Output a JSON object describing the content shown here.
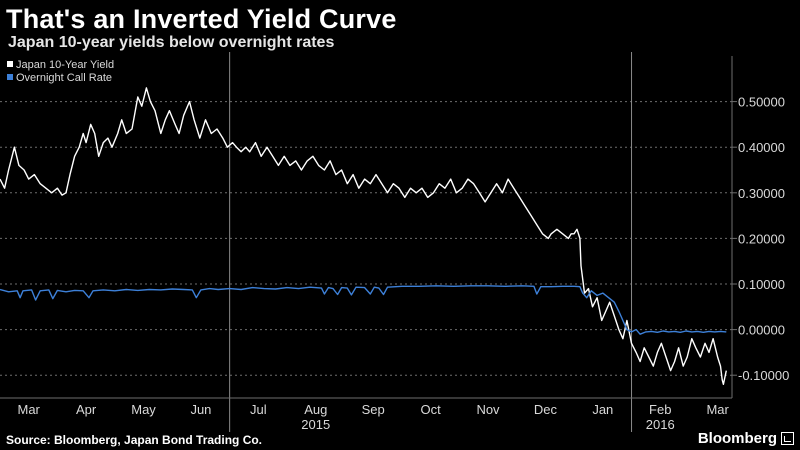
{
  "title": "That's an Inverted Yield Curve",
  "subtitle": "Japan 10-year yields below overnight rates",
  "source": "Source: Bloomberg, Japan Bond Trading Co.",
  "brand": "Bloomberg",
  "colors": {
    "background": "#000000",
    "yield_line": "#ffffff",
    "call_rate_line": "#3d80d8",
    "grid": "#6e6e6e",
    "text": "#d9d9d9"
  },
  "chart_data": {
    "type": "line",
    "title": "That's an Inverted Yield Curve",
    "subtitle": "Japan 10-year yields below overnight rates",
    "xlabel": "",
    "ylabel": "",
    "x_range": [
      2.0,
      14.75
    ],
    "ylim": [
      -0.15,
      0.6
    ],
    "y_ticks": [
      -0.1,
      0.0,
      0.1,
      0.2,
      0.3,
      0.4,
      0.5
    ],
    "y_tick_labels": [
      "-0.10000",
      "0.00000",
      "0.10000",
      "0.20000",
      "0.30000",
      "0.40000",
      "0.50000"
    ],
    "x_ticks": [
      {
        "x": 2.5,
        "label": "Mar"
      },
      {
        "x": 3.5,
        "label": "Apr"
      },
      {
        "x": 4.5,
        "label": "May"
      },
      {
        "x": 5.5,
        "label": "Jun"
      },
      {
        "x": 6.5,
        "label": "Jul"
      },
      {
        "x": 7.5,
        "label": "Aug"
      },
      {
        "x": 8.5,
        "label": "Sep"
      },
      {
        "x": 9.5,
        "label": "Oct"
      },
      {
        "x": 10.5,
        "label": "Nov"
      },
      {
        "x": 11.5,
        "label": "Dec"
      },
      {
        "x": 12.5,
        "label": "Jan"
      },
      {
        "x": 13.5,
        "label": "Feb"
      },
      {
        "x": 14.5,
        "label": "Mar"
      }
    ],
    "year_labels": [
      {
        "x": 7.5,
        "label": "2015"
      },
      {
        "x": 13.5,
        "label": "2016"
      }
    ],
    "year_dividers": [
      6.0,
      13.0
    ],
    "legend_position": "top-left",
    "series": [
      {
        "name": "Japan 10-Year Yield",
        "color": "#ffffff",
        "points": [
          [
            2.0,
            0.33
          ],
          [
            2.08,
            0.31
          ],
          [
            2.15,
            0.35
          ],
          [
            2.25,
            0.4
          ],
          [
            2.33,
            0.36
          ],
          [
            2.42,
            0.35
          ],
          [
            2.5,
            0.33
          ],
          [
            2.6,
            0.34
          ],
          [
            2.7,
            0.32
          ],
          [
            2.8,
            0.31
          ],
          [
            2.9,
            0.3
          ],
          [
            3.0,
            0.31
          ],
          [
            3.08,
            0.295
          ],
          [
            3.15,
            0.3
          ],
          [
            3.22,
            0.34
          ],
          [
            3.3,
            0.38
          ],
          [
            3.38,
            0.4
          ],
          [
            3.45,
            0.43
          ],
          [
            3.5,
            0.41
          ],
          [
            3.58,
            0.45
          ],
          [
            3.65,
            0.43
          ],
          [
            3.72,
            0.38
          ],
          [
            3.8,
            0.41
          ],
          [
            3.88,
            0.42
          ],
          [
            3.95,
            0.4
          ],
          [
            4.05,
            0.43
          ],
          [
            4.12,
            0.46
          ],
          [
            4.2,
            0.43
          ],
          [
            4.3,
            0.44
          ],
          [
            4.4,
            0.51
          ],
          [
            4.47,
            0.49
          ],
          [
            4.55,
            0.53
          ],
          [
            4.62,
            0.5
          ],
          [
            4.7,
            0.48
          ],
          [
            4.8,
            0.43
          ],
          [
            4.88,
            0.46
          ],
          [
            4.95,
            0.48
          ],
          [
            5.05,
            0.45
          ],
          [
            5.12,
            0.43
          ],
          [
            5.2,
            0.47
          ],
          [
            5.3,
            0.5
          ],
          [
            5.38,
            0.46
          ],
          [
            5.48,
            0.42
          ],
          [
            5.58,
            0.46
          ],
          [
            5.68,
            0.43
          ],
          [
            5.78,
            0.44
          ],
          [
            5.88,
            0.42
          ],
          [
            5.96,
            0.4
          ],
          [
            6.05,
            0.41
          ],
          [
            6.12,
            0.4
          ],
          [
            6.2,
            0.39
          ],
          [
            6.28,
            0.4
          ],
          [
            6.35,
            0.39
          ],
          [
            6.45,
            0.41
          ],
          [
            6.55,
            0.38
          ],
          [
            6.65,
            0.4
          ],
          [
            6.75,
            0.38
          ],
          [
            6.85,
            0.36
          ],
          [
            6.95,
            0.38
          ],
          [
            7.05,
            0.36
          ],
          [
            7.15,
            0.37
          ],
          [
            7.25,
            0.35
          ],
          [
            7.35,
            0.37
          ],
          [
            7.45,
            0.38
          ],
          [
            7.55,
            0.36
          ],
          [
            7.65,
            0.35
          ],
          [
            7.75,
            0.37
          ],
          [
            7.85,
            0.34
          ],
          [
            7.95,
            0.35
          ],
          [
            8.05,
            0.32
          ],
          [
            8.15,
            0.34
          ],
          [
            8.25,
            0.31
          ],
          [
            8.35,
            0.33
          ],
          [
            8.45,
            0.32
          ],
          [
            8.55,
            0.34
          ],
          [
            8.65,
            0.32
          ],
          [
            8.75,
            0.3
          ],
          [
            8.85,
            0.32
          ],
          [
            8.95,
            0.31
          ],
          [
            9.05,
            0.29
          ],
          [
            9.15,
            0.31
          ],
          [
            9.25,
            0.3
          ],
          [
            9.35,
            0.31
          ],
          [
            9.45,
            0.29
          ],
          [
            9.55,
            0.3
          ],
          [
            9.65,
            0.32
          ],
          [
            9.75,
            0.31
          ],
          [
            9.85,
            0.33
          ],
          [
            9.95,
            0.3
          ],
          [
            10.05,
            0.31
          ],
          [
            10.15,
            0.33
          ],
          [
            10.25,
            0.32
          ],
          [
            10.35,
            0.3
          ],
          [
            10.45,
            0.28
          ],
          [
            10.55,
            0.3
          ],
          [
            10.65,
            0.32
          ],
          [
            10.75,
            0.3
          ],
          [
            10.85,
            0.33
          ],
          [
            10.95,
            0.31
          ],
          [
            11.05,
            0.29
          ],
          [
            11.15,
            0.27
          ],
          [
            11.25,
            0.25
          ],
          [
            11.35,
            0.23
          ],
          [
            11.45,
            0.21
          ],
          [
            11.55,
            0.2
          ],
          [
            11.6,
            0.21
          ],
          [
            11.7,
            0.22
          ],
          [
            11.8,
            0.21
          ],
          [
            11.9,
            0.2
          ],
          [
            11.95,
            0.21
          ],
          [
            12.0,
            0.21
          ],
          [
            12.05,
            0.22
          ],
          [
            12.1,
            0.2
          ],
          [
            12.12,
            0.14
          ],
          [
            12.18,
            0.08
          ],
          [
            12.25,
            0.09
          ],
          [
            12.32,
            0.05
          ],
          [
            12.4,
            0.07
          ],
          [
            12.48,
            0.02
          ],
          [
            12.55,
            0.04
          ],
          [
            12.62,
            0.06
          ],
          [
            12.7,
            0.03
          ],
          [
            12.78,
            0.0
          ],
          [
            12.85,
            -0.02
          ],
          [
            12.92,
            0.02
          ],
          [
            13.0,
            -0.03
          ],
          [
            13.08,
            -0.05
          ],
          [
            13.15,
            -0.07
          ],
          [
            13.22,
            -0.04
          ],
          [
            13.3,
            -0.06
          ],
          [
            13.38,
            -0.08
          ],
          [
            13.45,
            -0.05
          ],
          [
            13.52,
            -0.03
          ],
          [
            13.6,
            -0.06
          ],
          [
            13.68,
            -0.09
          ],
          [
            13.75,
            -0.07
          ],
          [
            13.82,
            -0.04
          ],
          [
            13.9,
            -0.08
          ],
          [
            13.97,
            -0.06
          ],
          [
            14.05,
            -0.02
          ],
          [
            14.12,
            -0.04
          ],
          [
            14.2,
            -0.06
          ],
          [
            14.28,
            -0.03
          ],
          [
            14.35,
            -0.05
          ],
          [
            14.42,
            -0.02
          ],
          [
            14.5,
            -0.06
          ],
          [
            14.55,
            -0.08
          ],
          [
            14.58,
            -0.11
          ],
          [
            14.6,
            -0.12
          ],
          [
            14.65,
            -0.09
          ]
        ]
      },
      {
        "name": "Overnight Call Rate",
        "color": "#3d80d8",
        "points": [
          [
            2.0,
            0.088
          ],
          [
            2.15,
            0.083
          ],
          [
            2.3,
            0.085
          ],
          [
            2.35,
            0.07
          ],
          [
            2.4,
            0.085
          ],
          [
            2.55,
            0.087
          ],
          [
            2.62,
            0.065
          ],
          [
            2.7,
            0.085
          ],
          [
            2.85,
            0.087
          ],
          [
            2.92,
            0.068
          ],
          [
            3.0,
            0.086
          ],
          [
            3.15,
            0.083
          ],
          [
            3.3,
            0.086
          ],
          [
            3.45,
            0.085
          ],
          [
            3.55,
            0.07
          ],
          [
            3.62,
            0.085
          ],
          [
            3.8,
            0.087
          ],
          [
            4.0,
            0.085
          ],
          [
            4.2,
            0.088
          ],
          [
            4.4,
            0.086
          ],
          [
            4.6,
            0.088
          ],
          [
            4.8,
            0.087
          ],
          [
            5.0,
            0.089
          ],
          [
            5.2,
            0.088
          ],
          [
            5.35,
            0.087
          ],
          [
            5.42,
            0.07
          ],
          [
            5.5,
            0.087
          ],
          [
            5.65,
            0.09
          ],
          [
            5.8,
            0.088
          ],
          [
            6.0,
            0.09
          ],
          [
            6.2,
            0.088
          ],
          [
            6.4,
            0.092
          ],
          [
            6.6,
            0.09
          ],
          [
            6.8,
            0.089
          ],
          [
            7.0,
            0.092
          ],
          [
            7.2,
            0.09
          ],
          [
            7.4,
            0.093
          ],
          [
            7.6,
            0.091
          ],
          [
            7.65,
            0.078
          ],
          [
            7.72,
            0.092
          ],
          [
            7.8,
            0.09
          ],
          [
            7.88,
            0.077
          ],
          [
            7.95,
            0.092
          ],
          [
            8.05,
            0.091
          ],
          [
            8.12,
            0.076
          ],
          [
            8.2,
            0.093
          ],
          [
            8.35,
            0.092
          ],
          [
            8.45,
            0.078
          ],
          [
            8.52,
            0.093
          ],
          [
            8.6,
            0.091
          ],
          [
            8.68,
            0.077
          ],
          [
            8.75,
            0.093
          ],
          [
            9.0,
            0.095
          ],
          [
            9.3,
            0.095
          ],
          [
            9.6,
            0.096
          ],
          [
            9.9,
            0.095
          ],
          [
            10.2,
            0.096
          ],
          [
            10.5,
            0.096
          ],
          [
            10.8,
            0.095
          ],
          [
            11.1,
            0.096
          ],
          [
            11.3,
            0.095
          ],
          [
            11.35,
            0.078
          ],
          [
            11.42,
            0.094
          ],
          [
            11.6,
            0.094
          ],
          [
            11.8,
            0.095
          ],
          [
            12.0,
            0.095
          ],
          [
            12.1,
            0.094
          ],
          [
            12.15,
            0.08
          ],
          [
            12.22,
            0.07
          ],
          [
            12.3,
            0.085
          ],
          [
            12.4,
            0.075
          ],
          [
            12.5,
            0.08
          ],
          [
            12.6,
            0.07
          ],
          [
            12.7,
            0.06
          ],
          [
            12.78,
            0.04
          ],
          [
            12.85,
            0.02
          ],
          [
            12.92,
            0.0
          ],
          [
            13.0,
            -0.005
          ],
          [
            13.08,
            0.0
          ],
          [
            13.15,
            -0.01
          ],
          [
            13.25,
            -0.005
          ],
          [
            13.35,
            -0.004
          ],
          [
            13.45,
            -0.006
          ],
          [
            13.55,
            -0.003
          ],
          [
            13.65,
            -0.005
          ],
          [
            13.75,
            -0.004
          ],
          [
            13.85,
            -0.006
          ],
          [
            13.95,
            -0.003
          ],
          [
            14.05,
            -0.005
          ],
          [
            14.15,
            -0.004
          ],
          [
            14.25,
            -0.006
          ],
          [
            14.35,
            -0.004
          ],
          [
            14.45,
            -0.005
          ],
          [
            14.55,
            -0.004
          ],
          [
            14.65,
            -0.005
          ]
        ]
      }
    ]
  }
}
